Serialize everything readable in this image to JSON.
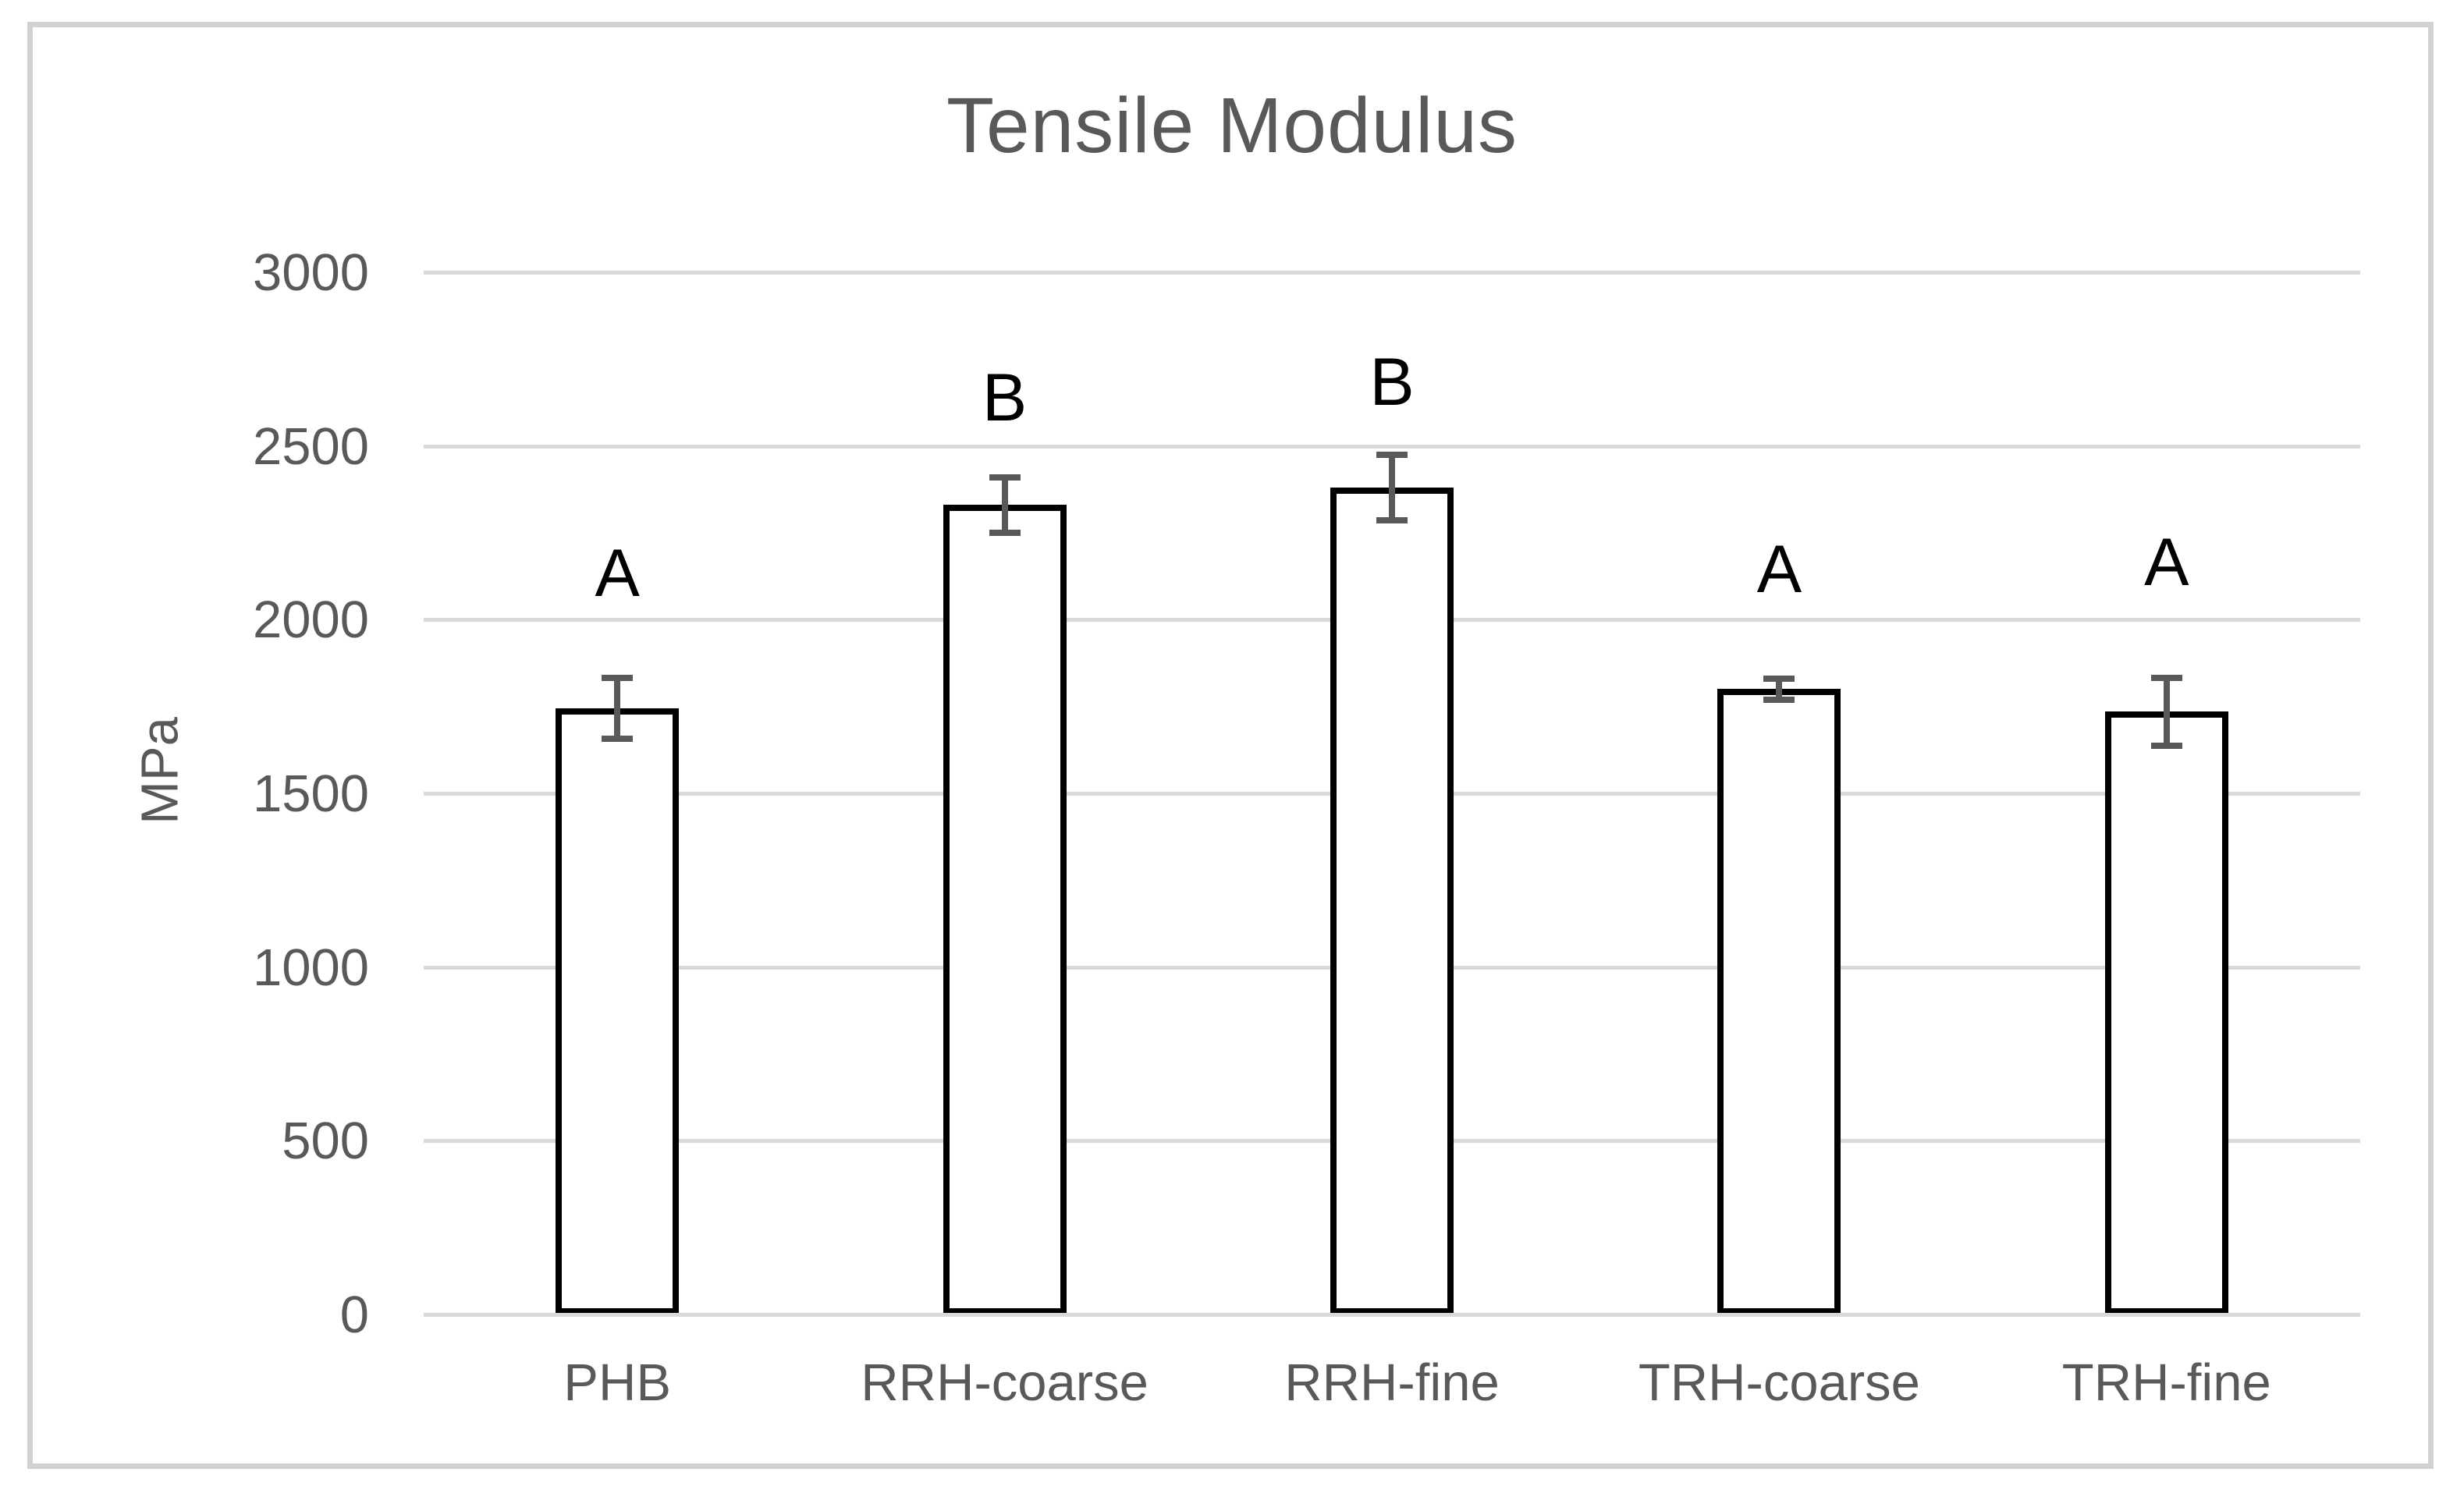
{
  "chart_data": {
    "type": "bar",
    "title": "Tensile Modulus",
    "ylabel": "MPa",
    "xlabel": "",
    "categories": [
      "PHB",
      "RRH-coarse",
      "RRH-fine",
      "TRH-coarse",
      "TRH-fine"
    ],
    "values": [
      1745,
      2330,
      2380,
      1800,
      1735
    ],
    "error_bars": [
      88,
      80,
      95,
      30,
      98
    ],
    "sig_letters": [
      "A",
      "B",
      "B",
      "A",
      "A"
    ],
    "sig_letter_baseline_values": [
      2055,
      2560,
      2605,
      2065,
      2085
    ],
    "ylim": [
      0,
      3000
    ],
    "yticks": [
      0,
      500,
      1000,
      1500,
      2000,
      2500,
      3000
    ],
    "grid": true,
    "legend": "none",
    "colors": {
      "bar_fill": "#ffffff",
      "bar_border": "#000000",
      "error_bar": "#595959",
      "axis_text": "#595959",
      "title_text": "#595959",
      "sig_letter": "#000000",
      "gridline": "#d9d9d9",
      "frame_border": "#d2d2d2",
      "background": "#ffffff"
    }
  }
}
